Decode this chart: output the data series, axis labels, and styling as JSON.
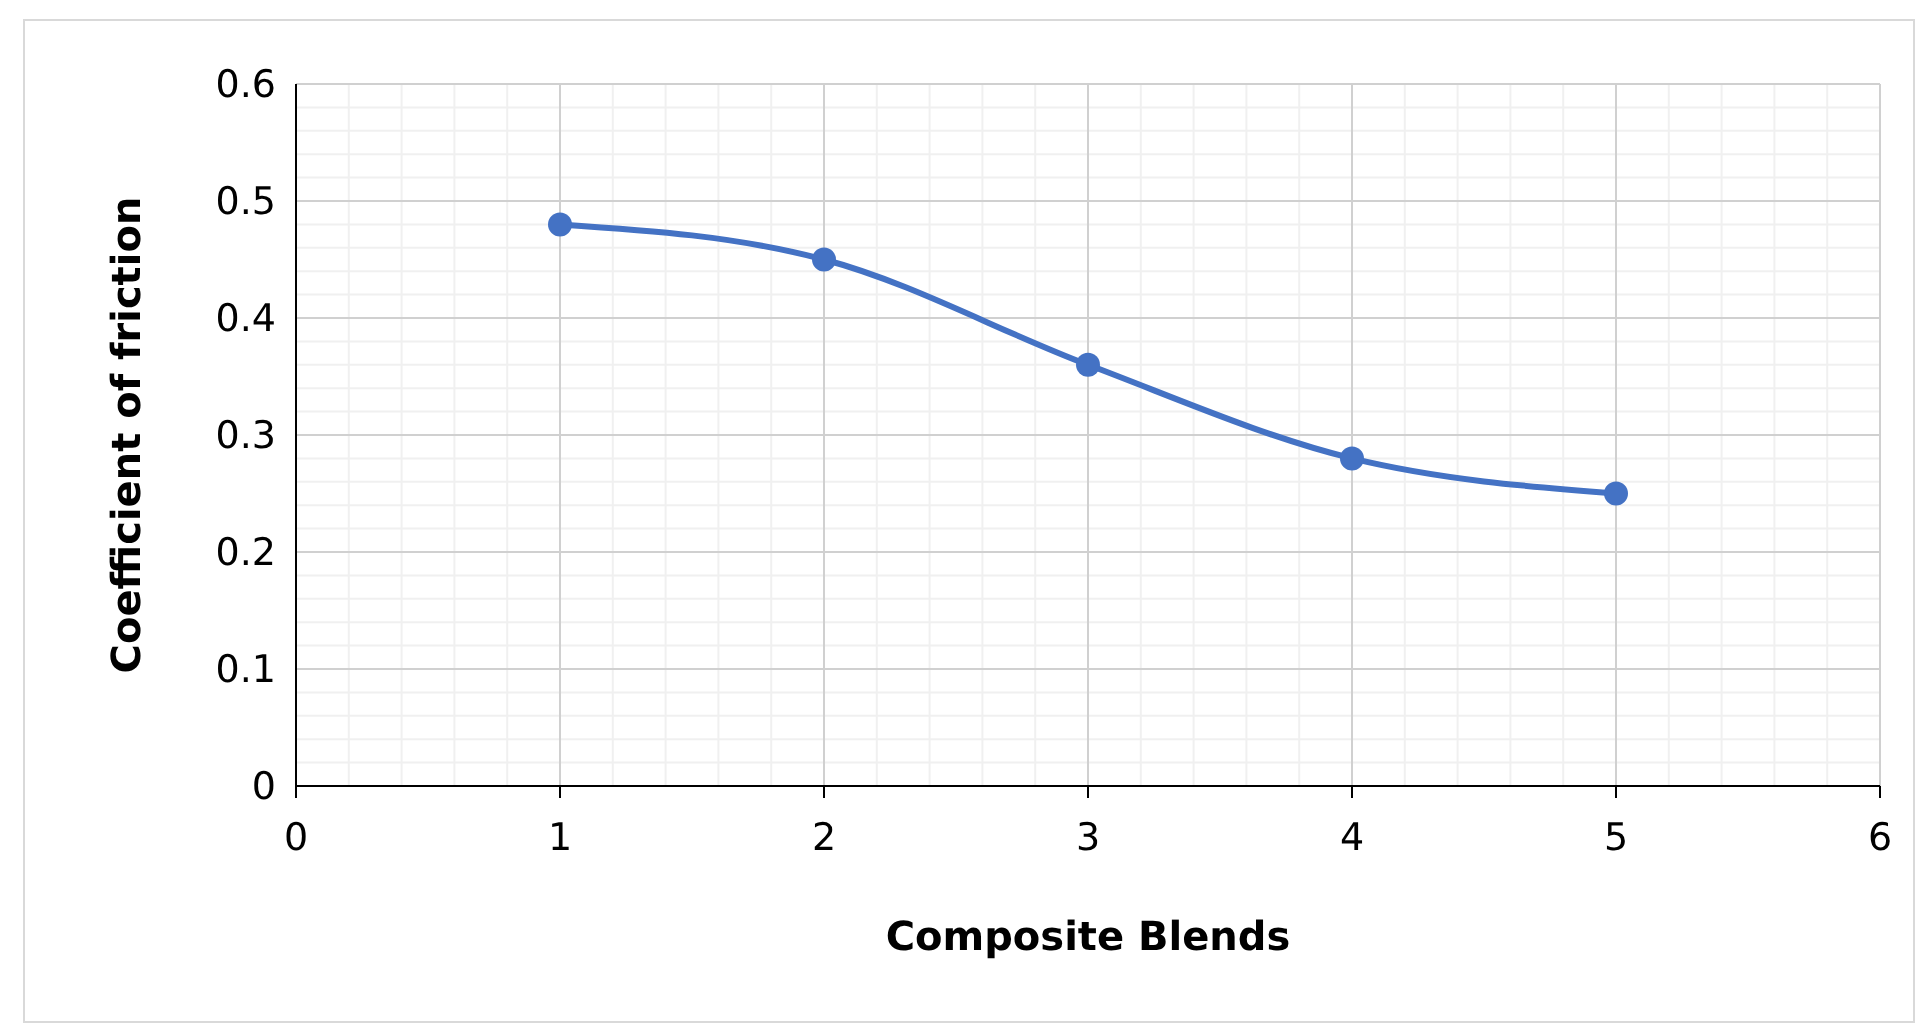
{
  "chart_data": {
    "type": "line",
    "xlabel": "Composite Blends",
    "ylabel": "Coefficient of friction",
    "x": [
      1,
      2,
      3,
      4,
      5
    ],
    "series": [
      {
        "color": "#4472c4",
        "values": [
          0.48,
          0.45,
          0.36,
          0.28,
          0.25
        ]
      }
    ],
    "xlim": [
      0,
      6
    ],
    "xticks": [
      0,
      1,
      2,
      3,
      4,
      5,
      6
    ],
    "ylim": [
      0,
      0.6
    ],
    "yticks": [
      0,
      0.1,
      0.2,
      0.3,
      0.4,
      0.5,
      0.6
    ],
    "grid": true,
    "marker": "circle",
    "line_style": "solid"
  }
}
